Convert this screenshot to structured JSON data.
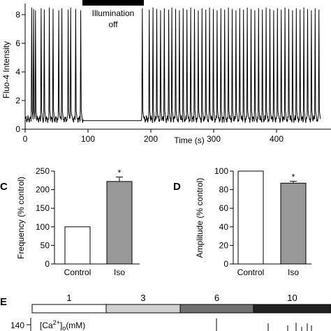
{
  "chart_data": [
    {
      "type": "line",
      "panel": "",
      "ylabel": "Fluo-4 Intensity",
      "xlabel": "Time (s)",
      "xlim": [
        0,
        470
      ],
      "ylim": [
        0,
        9
      ],
      "xticks": [
        "0",
        "100",
        "200",
        "300",
        "400"
      ],
      "yticks": [
        "0",
        "2",
        "4",
        "6",
        "8"
      ],
      "annotation": "Illumination off",
      "illumination_off_interval": [
        90,
        185
      ],
      "baseline": 0.7,
      "spike_times_before": [
        10,
        13,
        16,
        25,
        30,
        38,
        44,
        53,
        58,
        68,
        72,
        80,
        88
      ],
      "spike_times_after": [
        186,
        197,
        203,
        209,
        215,
        221,
        228,
        233,
        239,
        245,
        251,
        257,
        263,
        269,
        275,
        281,
        287,
        293,
        299,
        305,
        311,
        317,
        323,
        329,
        335,
        341,
        347,
        353,
        359,
        365,
        371,
        377,
        383,
        389,
        395,
        401,
        407,
        413,
        419,
        425,
        431,
        437,
        443,
        449,
        455,
        461,
        467
      ],
      "spike_peak": 8.5
    },
    {
      "type": "bar",
      "panel": "C",
      "ylabel": "Frequency (% control)",
      "categories": [
        "Control",
        "Iso"
      ],
      "values": [
        100,
        222
      ],
      "errors": [
        0,
        12
      ],
      "significance": [
        "",
        "*"
      ],
      "ylim": [
        0,
        250
      ],
      "yticks": [
        "0",
        "50",
        "100",
        "150",
        "200",
        "250"
      ],
      "colors": [
        "#ffffff",
        "#999999"
      ]
    },
    {
      "type": "bar",
      "panel": "D",
      "ylabel": "Amplitude (% control)",
      "categories": [
        "Control",
        "Iso"
      ],
      "values": [
        100,
        87
      ],
      "errors": [
        0,
        2
      ],
      "significance": [
        "",
        "*"
      ],
      "ylim": [
        0,
        100
      ],
      "yticks": [
        "0",
        "20",
        "40",
        "60",
        "80",
        "100"
      ],
      "colors": [
        "#ffffff",
        "#999999"
      ]
    },
    {
      "type": "line",
      "panel": "E",
      "legend_label": "[Ca2+]o(mM)",
      "concentrations": [
        "1",
        "3",
        "6",
        "10"
      ],
      "concentration_colors": [
        "#ffffff",
        "#d0d0d0",
        "#707070",
        "#222222"
      ],
      "yticks": [
        "140"
      ]
    }
  ]
}
